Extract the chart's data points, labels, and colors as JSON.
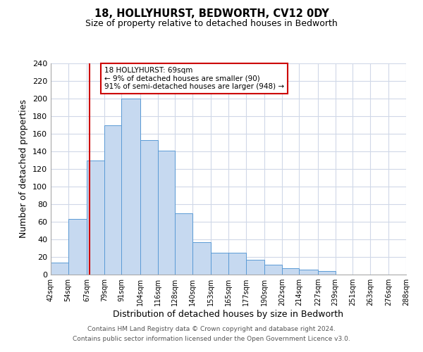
{
  "title": "18, HOLLYHURST, BEDWORTH, CV12 0DY",
  "subtitle": "Size of property relative to detached houses in Bedworth",
  "xlabel": "Distribution of detached houses by size in Bedworth",
  "ylabel": "Number of detached properties",
  "bin_edges": [
    42,
    54,
    67,
    79,
    91,
    104,
    116,
    128,
    140,
    153,
    165,
    177,
    190,
    202,
    214,
    227,
    239,
    251,
    263,
    276,
    288
  ],
  "bar_heights": [
    14,
    63,
    130,
    170,
    200,
    153,
    141,
    70,
    37,
    25,
    25,
    17,
    11,
    7,
    6,
    4,
    0,
    0,
    0,
    0
  ],
  "bar_color": "#c6d9f0",
  "bar_edge_color": "#5b9bd5",
  "property_line_x": 69,
  "property_line_color": "#cc0000",
  "annotation_title": "18 HOLLYHURST: 69sqm",
  "annotation_line1": "← 9% of detached houses are smaller (90)",
  "annotation_line2": "91% of semi-detached houses are larger (948) →",
  "annotation_box_color": "#ffffff",
  "annotation_box_edge": "#cc0000",
  "ylim": [
    0,
    240
  ],
  "yticks": [
    0,
    20,
    40,
    60,
    80,
    100,
    120,
    140,
    160,
    180,
    200,
    220,
    240
  ],
  "tick_labels": [
    "42sqm",
    "54sqm",
    "67sqm",
    "79sqm",
    "91sqm",
    "104sqm",
    "116sqm",
    "128sqm",
    "140sqm",
    "153sqm",
    "165sqm",
    "177sqm",
    "190sqm",
    "202sqm",
    "214sqm",
    "227sqm",
    "239sqm",
    "251sqm",
    "263sqm",
    "276sqm",
    "288sqm"
  ],
  "footer1": "Contains HM Land Registry data © Crown copyright and database right 2024.",
  "footer2": "Contains public sector information licensed under the Open Government Licence v3.0.",
  "background_color": "#ffffff",
  "grid_color": "#d0d8e8"
}
